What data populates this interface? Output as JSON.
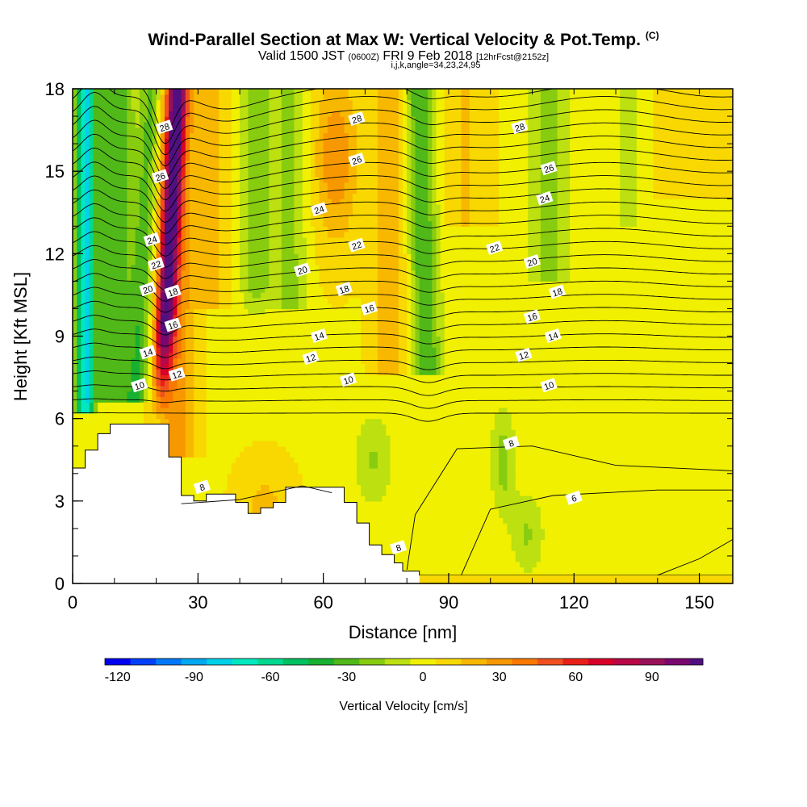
{
  "header": {
    "title": "Wind-Parallel Section at Max W: Vertical Velocity & Pot.Temp.",
    "copyright": "(C)",
    "valid_prefix": "Valid 1500 JST",
    "valid_utc": "(0600Z)",
    "valid_date": "FRI 9 Feb 2018",
    "forecast": "[12hrFcst@2152z]",
    "indices": "i,j,k,angle=34,23,24,95"
  },
  "chart_data": {
    "type": "heatmap",
    "xlabel": "Distance [nm]",
    "ylabel": "Height [Kft MSL]",
    "xlim": [
      0,
      158
    ],
    "ylim": [
      0,
      18
    ],
    "x_ticks": [
      "0",
      "30",
      "60",
      "90",
      "120",
      "150"
    ],
    "y_ticks": [
      "0",
      "3",
      "6",
      "9",
      "12",
      "15",
      "18"
    ],
    "colorbar": {
      "label": "Vertical Velocity [cm/s]",
      "ticks": [
        "-120",
        "-90",
        "-60",
        "-30",
        "0",
        "30",
        "60",
        "90"
      ],
      "range": [
        -125,
        110
      ],
      "step": 10,
      "colors": [
        "#0000f0",
        "#0040f8",
        "#0078f8",
        "#00a8f0",
        "#00d0e8",
        "#00e8c0",
        "#00d890",
        "#00c060",
        "#18b030",
        "#50b818",
        "#88cc10",
        "#bce010",
        "#f0f000",
        "#f8d800",
        "#f8b800",
        "#f89800",
        "#f87800",
        "#f05020",
        "#e82018",
        "#d80028",
        "#b80848",
        "#981058",
        "#780870",
        "#501080"
      ]
    },
    "updraft_max_x": 23,
    "downdraft_core_x": 3,
    "theta_contours": [
      {
        "value": "8",
        "labels": [
          [
            31,
            3.5
          ],
          [
            105,
            5.1
          ],
          [
            78,
            1.3
          ]
        ]
      },
      {
        "value": "6",
        "labels": [
          [
            120,
            3.1
          ]
        ]
      },
      {
        "value": "10",
        "labels": [
          [
            16,
            7.2
          ],
          [
            66,
            7.4
          ],
          [
            114,
            7.2
          ]
        ]
      },
      {
        "value": "12",
        "labels": [
          [
            25,
            7.6
          ],
          [
            57,
            8.2
          ],
          [
            108,
            8.3
          ]
        ]
      },
      {
        "value": "14",
        "labels": [
          [
            18,
            8.4
          ],
          [
            59,
            9.0
          ],
          [
            115,
            9.0
          ]
        ]
      },
      {
        "value": "16",
        "labels": [
          [
            24,
            9.4
          ],
          [
            71,
            10.0
          ],
          [
            110,
            9.7
          ]
        ]
      },
      {
        "value": "18",
        "labels": [
          [
            24,
            10.6
          ],
          [
            65,
            10.7
          ],
          [
            116,
            10.6
          ]
        ]
      },
      {
        "value": "20",
        "labels": [
          [
            18,
            10.7
          ],
          [
            55,
            11.4
          ],
          [
            110,
            11.7
          ]
        ]
      },
      {
        "value": "22",
        "labels": [
          [
            20,
            11.6
          ],
          [
            68,
            12.3
          ],
          [
            101,
            12.2
          ]
        ]
      },
      {
        "value": "24",
        "labels": [
          [
            19,
            12.5
          ],
          [
            59,
            13.6
          ],
          [
            113,
            14.0
          ]
        ]
      },
      {
        "value": "26",
        "labels": [
          [
            21,
            14.8
          ],
          [
            68,
            15.4
          ],
          [
            114,
            15.1
          ]
        ]
      },
      {
        "value": "28",
        "labels": [
          [
            22,
            16.6
          ],
          [
            68,
            16.9
          ],
          [
            107,
            16.6
          ]
        ]
      }
    ]
  }
}
